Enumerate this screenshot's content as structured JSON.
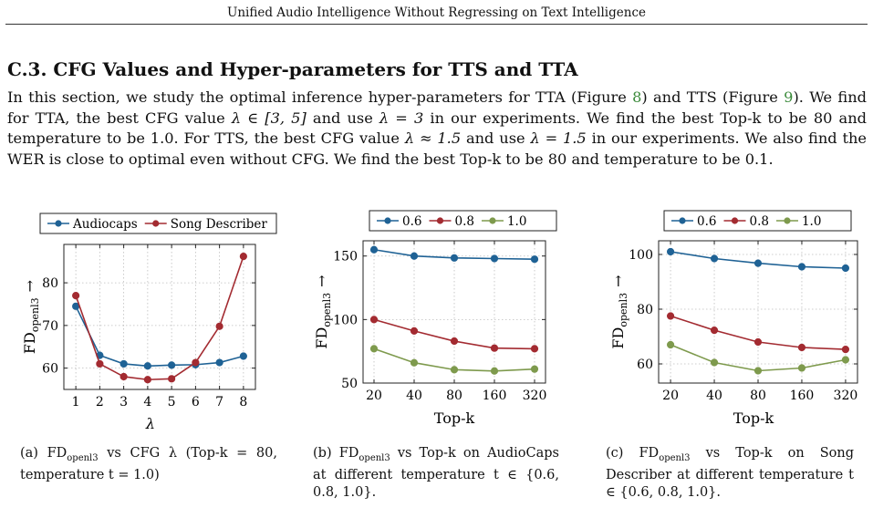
{
  "header": {
    "running_title": "Unified Audio Intelligence Without Regressing on Text Intelligence"
  },
  "section": {
    "number": "C.3.",
    "title": "CFG Values and Hyper-parameters for TTS and TTA"
  },
  "paragraph": {
    "p1": "In this section, we study the optimal inference hyper-parameters for TTA (Figure ",
    "ref1": "8",
    "p2": ") and TTS (Figure ",
    "ref2": "9",
    "p3": "). We find for TTA, the best CFG value ",
    "m1": "λ ∈ [3, 5]",
    "p4": " and use ",
    "m2": "λ = 3",
    "p5": " in our experiments. We find the best Top-k to be 80 and temperature to be 1.0. For TTS, the best CFG value ",
    "m3": "λ ≈ 1.5",
    "p6": " and use ",
    "m4": "λ = 1.5",
    "p7": " in our experiments. We also find the WER is close to optimal even without CFG. We find the best Top-k to be 80 and temperature to be 0.1."
  },
  "colors": {
    "blue": "#1f6295",
    "red": "#a32b31",
    "green": "#7e9a4d"
  },
  "chart_data": [
    {
      "type": "line",
      "x": [
        1,
        2,
        3,
        4,
        5,
        6,
        7,
        8
      ],
      "series": [
        {
          "name": "Audiocaps",
          "values": [
            74.5,
            63,
            61,
            60.5,
            60.7,
            60.8,
            61.3,
            62.8
          ]
        },
        {
          "name": "Song Describer",
          "values": [
            77,
            61,
            58,
            57.3,
            57.5,
            61.3,
            69.8,
            86.2
          ]
        }
      ],
      "xlabel": "λ",
      "ylabel": "FD",
      "ylabel_sub": "openl3",
      "ylabel_arrow": "→",
      "yticks": [
        60,
        70,
        80
      ],
      "ylim": [
        55,
        89
      ],
      "xlim": [
        0.5,
        8.5
      ],
      "legend": "top",
      "caption": {
        "label": "(a) FD",
        "sub": "openl3",
        "text": " vs CFG λ (Top-k = 80, temperature t = 1.0)"
      }
    },
    {
      "type": "line",
      "categories": [
        "20",
        "40",
        "80",
        "160",
        "320"
      ],
      "series": [
        {
          "name": "0.6",
          "values": [
            155,
            150,
            148.5,
            148,
            147.5
          ]
        },
        {
          "name": "0.8",
          "values": [
            100,
            91,
            83,
            77.5,
            77
          ]
        },
        {
          "name": "1.0",
          "values": [
            77,
            66,
            60.5,
            59.5,
            61
          ]
        }
      ],
      "xlabel": "Top-k",
      "ylabel": "FD",
      "ylabel_sub": "openl3",
      "ylabel_arrow": "→",
      "yticks": [
        50,
        100,
        150
      ],
      "ylim": [
        50,
        162
      ],
      "legend": "top",
      "caption": {
        "label": "(b) FD",
        "sub": "openl3",
        "text": " vs Top-k on AudioCaps at different temperature t ∈ {0.6, 0.8, 1.0}."
      }
    },
    {
      "type": "line",
      "categories": [
        "20",
        "40",
        "80",
        "160",
        "320"
      ],
      "series": [
        {
          "name": "0.6",
          "values": [
            101,
            98.5,
            96.8,
            95.5,
            95
          ]
        },
        {
          "name": "0.8",
          "values": [
            77.5,
            72.3,
            68,
            66,
            65.3
          ]
        },
        {
          "name": "1.0",
          "values": [
            67,
            60.5,
            57.5,
            58.5,
            61.5
          ]
        }
      ],
      "xlabel": "Top-k",
      "ylabel": "FD",
      "ylabel_sub": "openl3",
      "ylabel_arrow": "→",
      "yticks": [
        60,
        80,
        100
      ],
      "ylim": [
        53,
        105
      ],
      "legend": "top",
      "caption": {
        "label": "(c) FD",
        "sub": "openl3",
        "text": " vs Top-k on Song Describer at different temperature t ∈ {0.6, 0.8, 1.0}."
      }
    }
  ]
}
